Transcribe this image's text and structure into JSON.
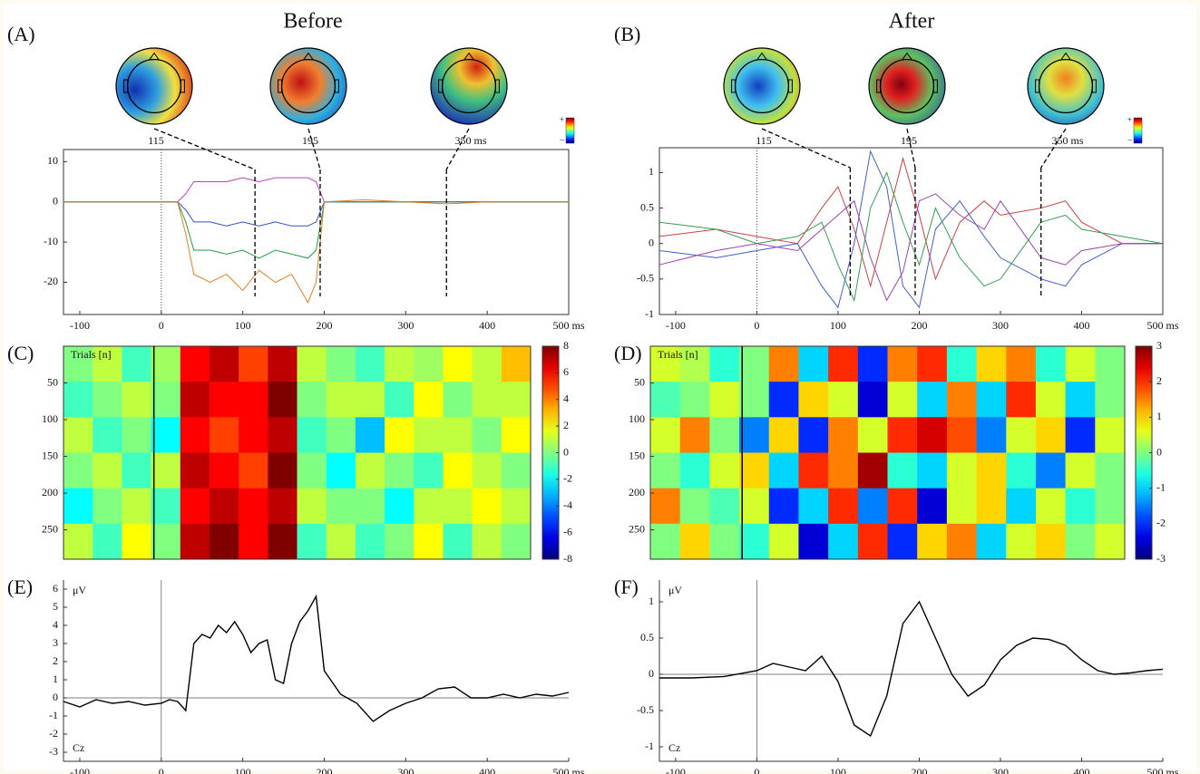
{
  "chart_data": [
    {
      "type": "line",
      "panel_label": "(A)",
      "title": "Before",
      "topomap_labels": [
        "115",
        "195",
        "350 ms"
      ],
      "colorbar_labels": [
        "+",
        "–"
      ],
      "marker_times": [
        115,
        195,
        350
      ],
      "x": [
        -120,
        -80,
        -40,
        0,
        20,
        30,
        40,
        60,
        80,
        100,
        120,
        140,
        160,
        180,
        190,
        200,
        250,
        300,
        350,
        400,
        450,
        500
      ],
      "series": [
        {
          "color": "#c040c0",
          "values": [
            0,
            0,
            0,
            0,
            0,
            2,
            5,
            5,
            5,
            6,
            5,
            6,
            6,
            6,
            5,
            0,
            0,
            0,
            0,
            0,
            0,
            0
          ]
        },
        {
          "color": "#3050d0",
          "values": [
            0,
            0,
            0,
            0,
            0,
            -2,
            -5,
            -5,
            -6,
            -5,
            -6,
            -5,
            -6,
            -6,
            -5,
            0,
            0,
            0,
            0,
            0,
            0,
            0
          ]
        },
        {
          "color": "#20a040",
          "values": [
            0,
            0,
            0,
            0,
            0,
            -5,
            -12,
            -12,
            -13,
            -12,
            -14,
            -12,
            -13,
            -14,
            -12,
            0,
            0,
            0,
            0,
            0,
            0,
            0
          ]
        },
        {
          "color": "#e08020",
          "values": [
            0,
            0,
            0,
            0,
            0,
            -8,
            -18,
            -20,
            -18,
            -22,
            -17,
            -20,
            -18,
            -25,
            -20,
            0,
            0.5,
            0,
            -0.5,
            0,
            0,
            0
          ]
        }
      ],
      "xlim": [
        -120,
        500
      ],
      "xticks": [
        -100,
        0,
        100,
        200,
        300,
        400,
        {
          "value": 500,
          "label": "500 ms"
        }
      ],
      "ylim": [
        -28,
        13
      ],
      "yticks": [
        -20,
        -10,
        0,
        10
      ]
    },
    {
      "type": "line",
      "panel_label": "(B)",
      "title": "After",
      "topomap_labels": [
        "115",
        "195",
        "350 ms"
      ],
      "colorbar_labels": [
        "+",
        "–"
      ],
      "marker_times": [
        115,
        195,
        350
      ],
      "x": [
        -120,
        -50,
        0,
        50,
        80,
        100,
        120,
        140,
        160,
        180,
        200,
        220,
        250,
        280,
        300,
        350,
        380,
        400,
        450,
        500
      ],
      "series": [
        {
          "color": "#d04040",
          "values": [
            0.1,
            0.2,
            0.1,
            0,
            0.5,
            0.8,
            0.2,
            -0.6,
            0.3,
            1.2,
            0.4,
            -0.5,
            0.3,
            0.6,
            0.4,
            0.5,
            0.6,
            0.3,
            0,
            0
          ]
        },
        {
          "color": "#4060d0",
          "values": [
            -0.1,
            -0.2,
            -0.1,
            0,
            -0.6,
            -0.9,
            0,
            1.3,
            0.8,
            -0.6,
            -0.9,
            0.2,
            0.6,
            0.1,
            -0.2,
            -0.5,
            -0.6,
            -0.3,
            0,
            0
          ]
        },
        {
          "color": "#30a050",
          "values": [
            0.3,
            0.2,
            0,
            0.1,
            0.3,
            -0.3,
            -0.8,
            0.5,
            1.0,
            0.3,
            -0.3,
            0.5,
            -0.2,
            -0.6,
            -0.5,
            0.3,
            0.4,
            0.2,
            0.1,
            0
          ]
        },
        {
          "color": "#a040b0",
          "values": [
            -0.3,
            -0.1,
            0,
            -0.1,
            0.2,
            0.4,
            0.6,
            -0.2,
            -0.8,
            -0.4,
            0.6,
            0.7,
            0.4,
            0.2,
            0.6,
            -0.2,
            -0.3,
            -0.1,
            0,
            0
          ]
        }
      ],
      "xlim": [
        -120,
        500
      ],
      "xticks": [
        -100,
        0,
        100,
        200,
        300,
        400,
        {
          "value": 500,
          "label": "500 ms"
        }
      ],
      "ylim": [
        -1,
        1.35
      ],
      "yticks": [
        -1,
        -0.5,
        0,
        0.5,
        1
      ]
    },
    {
      "type": "heatmap",
      "panel_label": "(C)",
      "y_label": "Trials [n]",
      "xlim": [
        -120,
        500
      ],
      "ylim": [
        0,
        290
      ],
      "yticks": [
        50,
        100,
        150,
        200,
        250
      ],
      "clim": [
        -8,
        8
      ],
      "colorbar_ticks": [
        -8,
        -6,
        -4,
        -2,
        0,
        2,
        4,
        6,
        8
      ],
      "z": [
        [
          0,
          1,
          -1,
          0.5,
          6,
          7,
          5,
          7,
          1,
          0,
          -1,
          1,
          0.5,
          2,
          1,
          3
        ],
        [
          -1,
          0,
          1,
          0,
          7,
          6,
          6,
          8,
          0,
          1,
          1,
          -1,
          2,
          0,
          1,
          1
        ],
        [
          1,
          -1,
          0,
          -2,
          6,
          5,
          6,
          7,
          -1,
          0,
          -3,
          2,
          1,
          1,
          0,
          2
        ],
        [
          0,
          1,
          -1,
          1,
          7,
          6,
          5,
          8,
          0,
          -2,
          1,
          0,
          -1,
          2,
          1,
          0
        ],
        [
          -2,
          0,
          1,
          -1,
          6,
          7,
          6,
          7,
          1,
          0,
          0,
          -2,
          1,
          1,
          2,
          1
        ],
        [
          1,
          -1,
          2,
          0,
          7,
          8,
          6,
          8,
          -1,
          1,
          -1,
          0,
          2,
          -1,
          1,
          0
        ]
      ]
    },
    {
      "type": "heatmap",
      "panel_label": "(D)",
      "y_label": "Trials [n]",
      "xlim": [
        -120,
        500
      ],
      "ylim": [
        0,
        290
      ],
      "yticks": [
        50,
        100,
        150,
        200,
        250
      ],
      "clim": [
        -3,
        3
      ],
      "colorbar_ticks": [
        -3,
        -2,
        -1,
        0,
        1,
        2,
        3
      ],
      "z": [
        [
          0.5,
          0.3,
          -0.5,
          0,
          1.5,
          -1,
          2,
          -2,
          1.5,
          2,
          -0.5,
          1,
          1.5,
          -0.5,
          0.5,
          0
        ],
        [
          -0.3,
          0,
          0.5,
          0,
          -2,
          1,
          0.5,
          -2.5,
          0.5,
          -1,
          1.5,
          -1,
          2,
          0.5,
          -1,
          0
        ],
        [
          0.5,
          1.5,
          0,
          -1.5,
          1,
          -2,
          1.5,
          0.5,
          2,
          2.5,
          1.8,
          -1.5,
          0.5,
          1,
          -2,
          0.5
        ],
        [
          0,
          -0.5,
          0.5,
          1,
          -1,
          2,
          1.5,
          2.8,
          -0.5,
          -1,
          0.5,
          1,
          -0.5,
          -1.5,
          0.5,
          0
        ],
        [
          1.5,
          0,
          -0.3,
          0.5,
          -2,
          -1,
          2,
          -1.5,
          2,
          -2.5,
          0.5,
          1,
          -1,
          0.5,
          -0.5,
          0
        ],
        [
          0,
          1,
          0,
          -0.5,
          0.5,
          -2.5,
          -1,
          2,
          -2,
          1,
          1.5,
          -1,
          0.5,
          1,
          0,
          0.5
        ]
      ]
    },
    {
      "type": "line",
      "panel_label": "(E)",
      "unit_label": "μV",
      "channel_label": "Cz",
      "x": [
        -120,
        -100,
        -80,
        -60,
        -40,
        -20,
        0,
        10,
        20,
        30,
        40,
        50,
        60,
        70,
        80,
        90,
        100,
        110,
        120,
        130,
        140,
        150,
        160,
        170,
        180,
        190,
        200,
        220,
        240,
        260,
        280,
        300,
        320,
        340,
        360,
        380,
        400,
        420,
        440,
        460,
        480,
        500
      ],
      "series": [
        {
          "color": "#000000",
          "values": [
            -0.2,
            -0.5,
            -0.1,
            -0.3,
            -0.2,
            -0.4,
            -0.3,
            -0.1,
            -0.2,
            -0.7,
            3,
            3.5,
            3.3,
            4,
            3.6,
            4.2,
            3.5,
            2.5,
            3,
            3.2,
            1,
            0.8,
            3,
            4.2,
            4.8,
            5.6,
            1.5,
            0.2,
            -0.3,
            -1.3,
            -0.7,
            -0.3,
            0,
            0.5,
            0.6,
            0,
            0,
            0.2,
            0,
            0.2,
            0.1,
            0.3
          ]
        }
      ],
      "xlim": [
        -120,
        500
      ],
      "xticks": [
        -100,
        0,
        100,
        200,
        300,
        400,
        {
          "value": 500,
          "label": "500 ms"
        }
      ],
      "ylim": [
        -3.5,
        6.5
      ],
      "yticks": [
        -3,
        -2,
        -1,
        0,
        1,
        2,
        3,
        4,
        5,
        6
      ]
    },
    {
      "type": "line",
      "panel_label": "(F)",
      "unit_label": "μV",
      "channel_label": "Cz",
      "x": [
        -120,
        -80,
        -40,
        0,
        20,
        40,
        60,
        80,
        100,
        120,
        140,
        160,
        180,
        200,
        220,
        240,
        260,
        280,
        300,
        320,
        340,
        360,
        380,
        400,
        420,
        440,
        460,
        480,
        500
      ],
      "series": [
        {
          "color": "#000000",
          "values": [
            -0.05,
            -0.05,
            -0.03,
            0.05,
            0.15,
            0.1,
            0.05,
            0.25,
            -0.1,
            -0.7,
            -0.85,
            -0.3,
            0.7,
            1,
            0.5,
            0,
            -0.3,
            -0.15,
            0.2,
            0.4,
            0.5,
            0.48,
            0.4,
            0.2,
            0.05,
            0,
            0.02,
            0.05,
            0.07
          ]
        }
      ],
      "xlim": [
        -120,
        500
      ],
      "xticks": [
        -100,
        0,
        100,
        200,
        300,
        400,
        {
          "value": 500,
          "label": "500 ms"
        }
      ],
      "ylim": [
        -1.2,
        1.3
      ],
      "yticks": [
        -1,
        -0.5,
        0,
        0.5,
        1
      ]
    }
  ]
}
